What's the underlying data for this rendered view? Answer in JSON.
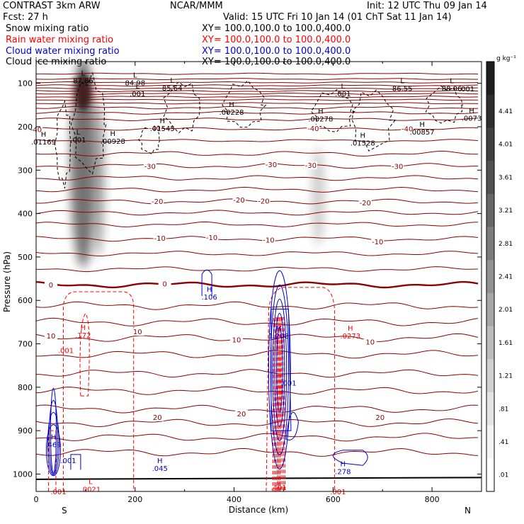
{
  "header": {
    "model": "CONTRAST   3km ARW",
    "org": "NCAR/MMM",
    "init": "Init: 12 UTC Thu 09 Jan 14",
    "fcst": "Fcst:    27 h",
    "valid": "Valid: 15 UTC Fri 10 Jan 14 (01 ChT Sat 11 Jan 14)"
  },
  "legend": [
    {
      "label": "Snow mixing ratio",
      "xy": "XY=  100.0,100.0 to 100.0,400.0",
      "color": "#000000"
    },
    {
      "label": "Rain water mixing ratio",
      "xy": "XY=  100.0,100.0 to 100.0,400.0",
      "color": "#ff0000"
    },
    {
      "label": "Cloud water mixing ratio",
      "xy": "XY=  100.0,100.0 to 100.0,400.0",
      "color": "#0000cc"
    },
    {
      "label": "Cloud ice mixing ratio",
      "xy": "XY=  100.0,100.0 to 100.0,400.0",
      "color": "#000000"
    }
  ],
  "chart_data": {
    "type": "cross-section contour",
    "xlabel": "Distance (km)",
    "ylabel": "Pressure (hPa)",
    "xlim": [
      0,
      900
    ],
    "ylim": [
      1040,
      50
    ],
    "xticks": [
      0,
      200,
      400,
      600,
      800
    ],
    "yticks": [
      100,
      200,
      300,
      400,
      500,
      600,
      700,
      800,
      900,
      1000
    ],
    "end_labels": {
      "left": "S",
      "right": "N"
    },
    "colorbar": {
      "unit": "g kg⁻¹",
      "labels": [
        "4.41",
        "4.01",
        "3.61",
        "3.21",
        "2.81",
        "2.41",
        "2.01",
        "1.61",
        "1.21",
        ".81",
        ".41",
        ".01"
      ],
      "colors": [
        "#1e1e1e",
        "#2e2e2e",
        "#3f3f3f",
        "#515151",
        "#666666",
        "#7b7b7b",
        "#919191",
        "#a6a6a6",
        "#bcbcbc",
        "#d0d0d0",
        "#e3e3e3",
        "#f3f3f3",
        "#ffffff"
      ]
    },
    "temperature_labels": [
      {
        "text": "-40",
        "x": 0,
        "p": 207
      },
      {
        "text": "-40",
        "x": 240,
        "p": 204
      },
      {
        "text": "-40",
        "x": 560,
        "p": 205
      },
      {
        "text": "-40",
        "x": 750,
        "p": 206
      },
      {
        "text": "-30",
        "x": 230,
        "p": 292
      },
      {
        "text": "-30",
        "x": 475,
        "p": 288
      },
      {
        "text": "-30",
        "x": 555,
        "p": 290
      },
      {
        "text": "-30",
        "x": 730,
        "p": 292
      },
      {
        "text": "-20",
        "x": 245,
        "p": 373
      },
      {
        "text": "-20",
        "x": 410,
        "p": 370
      },
      {
        "text": "-20",
        "x": 460,
        "p": 372
      },
      {
        "text": "-20",
        "x": 665,
        "p": 376
      },
      {
        "text": "-10",
        "x": 250,
        "p": 458
      },
      {
        "text": "-10",
        "x": 355,
        "p": 456
      },
      {
        "text": "-10",
        "x": 470,
        "p": 462
      },
      {
        "text": "-10",
        "x": 690,
        "p": 466
      },
      {
        "text": "0",
        "x": 30,
        "p": 565
      },
      {
        "text": "0",
        "x": 260,
        "p": 563
      },
      {
        "text": "10",
        "x": 30,
        "p": 683
      },
      {
        "text": "10",
        "x": 205,
        "p": 673
      },
      {
        "text": "10",
        "x": 405,
        "p": 692
      },
      {
        "text": "10",
        "x": 675,
        "p": 697
      },
      {
        "text": "20",
        "x": 245,
        "p": 870
      },
      {
        "text": "20",
        "x": 415,
        "p": 862
      },
      {
        "text": "20",
        "x": 695,
        "p": 870
      }
    ],
    "extrema_labels": [
      {
        "kind": "L",
        "value": "87.86",
        "x": 95,
        "p": 82,
        "series": "ice"
      },
      {
        "kind": "L",
        "value": "84.98",
        "x": 200,
        "p": 87,
        "series": "ice"
      },
      {
        "kind": "L",
        "value": ".001",
        "x": 205,
        "p": 112,
        "series": "ice"
      },
      {
        "kind": "L",
        "value": "85.64",
        "x": 275,
        "p": 99,
        "series": "ice"
      },
      {
        "kind": "H",
        "value": ".00228",
        "x": 395,
        "p": 154,
        "series": "ice"
      },
      {
        "kind": "H",
        "value": ".01545",
        "x": 255,
        "p": 192,
        "series": "ice"
      },
      {
        "kind": "H",
        "value": ".00928",
        "x": 155,
        "p": 221,
        "series": "ice"
      },
      {
        "kind": "H",
        "value": ".01169",
        "x": 15,
        "p": 223,
        "series": "ice"
      },
      {
        "kind": "L",
        "value": ".001",
        "x": 85,
        "p": 218,
        "series": "ice"
      },
      {
        "kind": "L",
        "value": ".001",
        "x": 620,
        "p": 112,
        "series": "ice"
      },
      {
        "kind": "L",
        "value": "86.55",
        "x": 740,
        "p": 100,
        "series": "ice"
      },
      {
        "kind": "L",
        "value": "88.06",
        "x": 840,
        "p": 100,
        "series": "ice"
      },
      {
        "kind": ".001",
        "value": "",
        "x": 870,
        "p": 112,
        "series": "ice"
      },
      {
        "kind": "H",
        "value": ".00278",
        "x": 575,
        "p": 170,
        "series": "ice"
      },
      {
        "kind": "H",
        "value": ".0073",
        "x": 880,
        "p": 168,
        "series": "ice"
      },
      {
        "kind": "H",
        "value": ".00857",
        "x": 780,
        "p": 200,
        "series": "ice"
      },
      {
        "kind": "H",
        "value": ".01528",
        "x": 660,
        "p": 225,
        "series": "ice"
      },
      {
        "kind": "H",
        "value": ".106",
        "x": 350,
        "p": 580,
        "series": "cloud"
      },
      {
        "kind": "H",
        "value": ".172",
        "x": 95,
        "p": 668,
        "series": "rain"
      },
      {
        "kind": "H",
        "value": "1.208",
        "x": 490,
        "p": 670,
        "series": "cloud"
      },
      {
        "kind": "H",
        "value": ".0273",
        "x": 635,
        "p": 670,
        "series": "rain"
      },
      {
        "kind": ".001",
        "value": "",
        "x": 60,
        "p": 715,
        "series": "rain"
      },
      {
        "kind": ".001",
        "value": "",
        "x": 510,
        "p": 790,
        "series": "cloud"
      },
      {
        "kind": "H",
        "value": ".469",
        "x": 35,
        "p": 920,
        "series": "cloud"
      },
      {
        "kind": ".001",
        "value": "",
        "x": 65,
        "p": 968,
        "series": "cloud"
      },
      {
        "kind": "H",
        "value": ".045",
        "x": 250,
        "p": 975,
        "series": "cloud"
      },
      {
        "kind": "L",
        "value": ".0021",
        "x": 110,
        "p": 1023,
        "series": "rain"
      },
      {
        "kind": ".001",
        "value": "",
        "x": 45,
        "p": 1040,
        "series": "rain"
      },
      {
        "kind": "H",
        "value": ".278",
        "x": 620,
        "p": 982,
        "series": "cloud"
      },
      {
        "kind": ".401",
        "value": "",
        "x": 490,
        "p": 1030,
        "series": "rain"
      },
      {
        "kind": ".001",
        "value": "",
        "x": 610,
        "p": 1040,
        "series": "rain"
      }
    ]
  }
}
